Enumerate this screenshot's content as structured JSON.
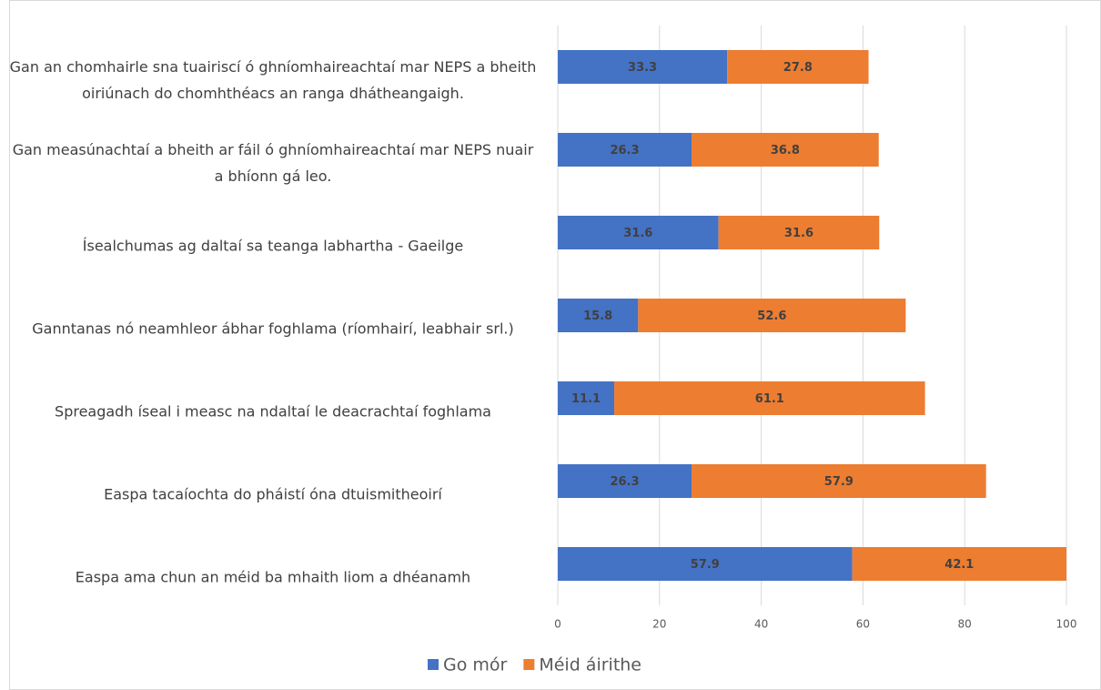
{
  "chart_data": {
    "type": "stacked_barh",
    "categories": [
      "Gan an chomhairle sna tuairiscí ó ghníomhaireachtaí mar NEPS a bheith oiriúnach do chomhthéacs an ranga dhátheangaigh.",
      "Gan measúnachtaí a bheith ar fáil ó ghníomhaireachtaí mar NEPS nuair a bhíonn gá leo.",
      "Ísealchumas ag daltaí sa teanga labhartha - Gaeilge",
      "Ganntanas nó neamhleor ábhar foghlama (ríomhairí, leabhair srl.)",
      "Spreagadh íseal i measc na ndaltaí le deacrachtaí foghlama",
      "Easpa tacaíochta do pháistí óna dtuismitheoirí",
      "Easpa ama chun an méid ba mhaith liom a dhéanamh"
    ],
    "series": [
      {
        "name": "Go mór",
        "color": "#4472c4",
        "values": [
          33.3,
          26.3,
          31.6,
          15.8,
          11.1,
          26.3,
          57.9
        ]
      },
      {
        "name": "Méid áirithe",
        "color": "#ed7d31",
        "values": [
          27.8,
          36.8,
          31.6,
          52.6,
          61.1,
          57.9,
          42.1
        ]
      }
    ],
    "xlim": [
      0,
      100
    ],
    "xticks": [
      0,
      20,
      40,
      60,
      80,
      100
    ],
    "grid": true,
    "legend": "bottom"
  }
}
